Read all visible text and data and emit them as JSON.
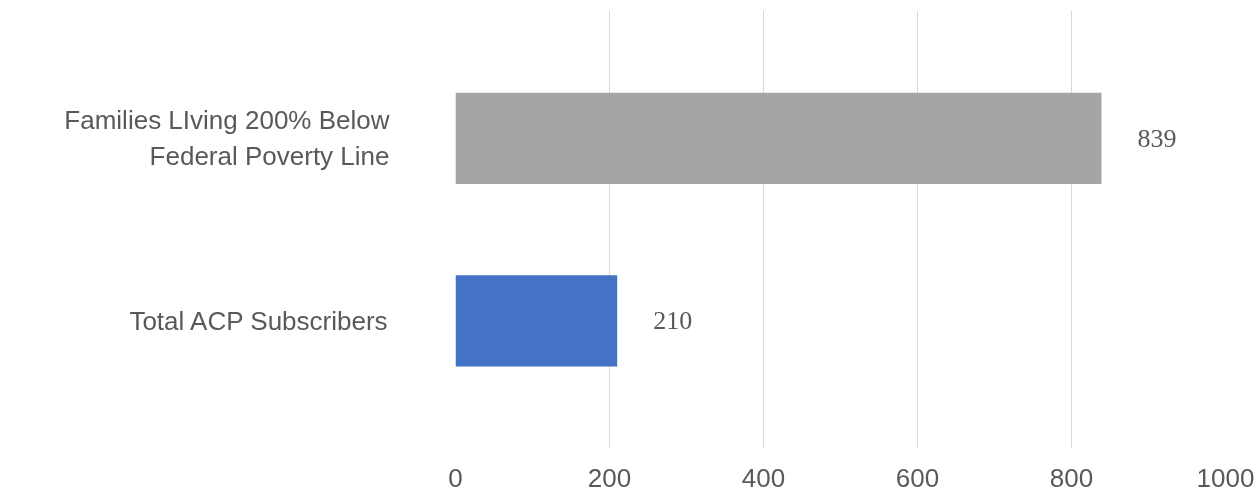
{
  "chart_data": {
    "type": "bar",
    "orientation": "horizontal",
    "categories": [
      "Families LIving 200% Below Federal Poverty Line",
      "Total ACP Subscribers"
    ],
    "values": [
      839,
      210
    ],
    "colors": [
      "#a5a5a5",
      "#4472c4"
    ],
    "xlim": [
      0,
      1000
    ],
    "xticks": [
      0,
      200,
      400,
      600,
      800,
      1000
    ],
    "grid": "x",
    "data_labels": true
  }
}
